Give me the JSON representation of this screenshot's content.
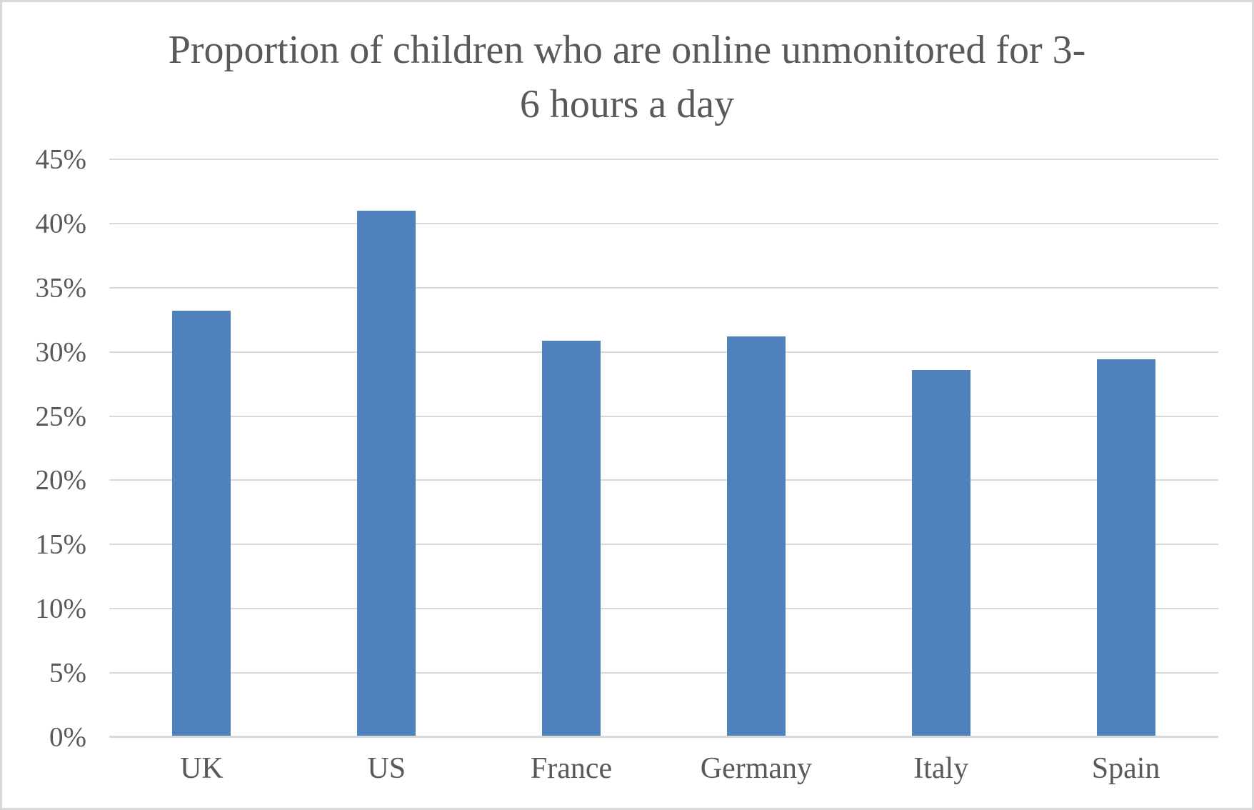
{
  "chart_data": {
    "type": "bar",
    "title": "Proportion of children who are online unmonitored for 3-\n6 hours a day",
    "categories": [
      "UK",
      "US",
      "France",
      "Germany",
      "Italy",
      "Spain"
    ],
    "values": [
      33.2,
      41,
      30.9,
      31.2,
      28.6,
      29.4
    ],
    "value_unit": "%",
    "xlabel": "",
    "ylabel": "",
    "ylim": [
      0,
      45
    ],
    "ytick_step": 5,
    "ytick_labels": [
      "0%",
      "5%",
      "10%",
      "15%",
      "20%",
      "25%",
      "30%",
      "35%",
      "40%",
      "45%"
    ],
    "grid": true,
    "legend": "none",
    "colors": {
      "bar": "#4F81BD",
      "text": "#595959",
      "gridline": "#D9D9D9",
      "axis_line": "#D9D9D9",
      "background": "#FFFFFF",
      "frame_border": "#D8D8D8"
    }
  }
}
